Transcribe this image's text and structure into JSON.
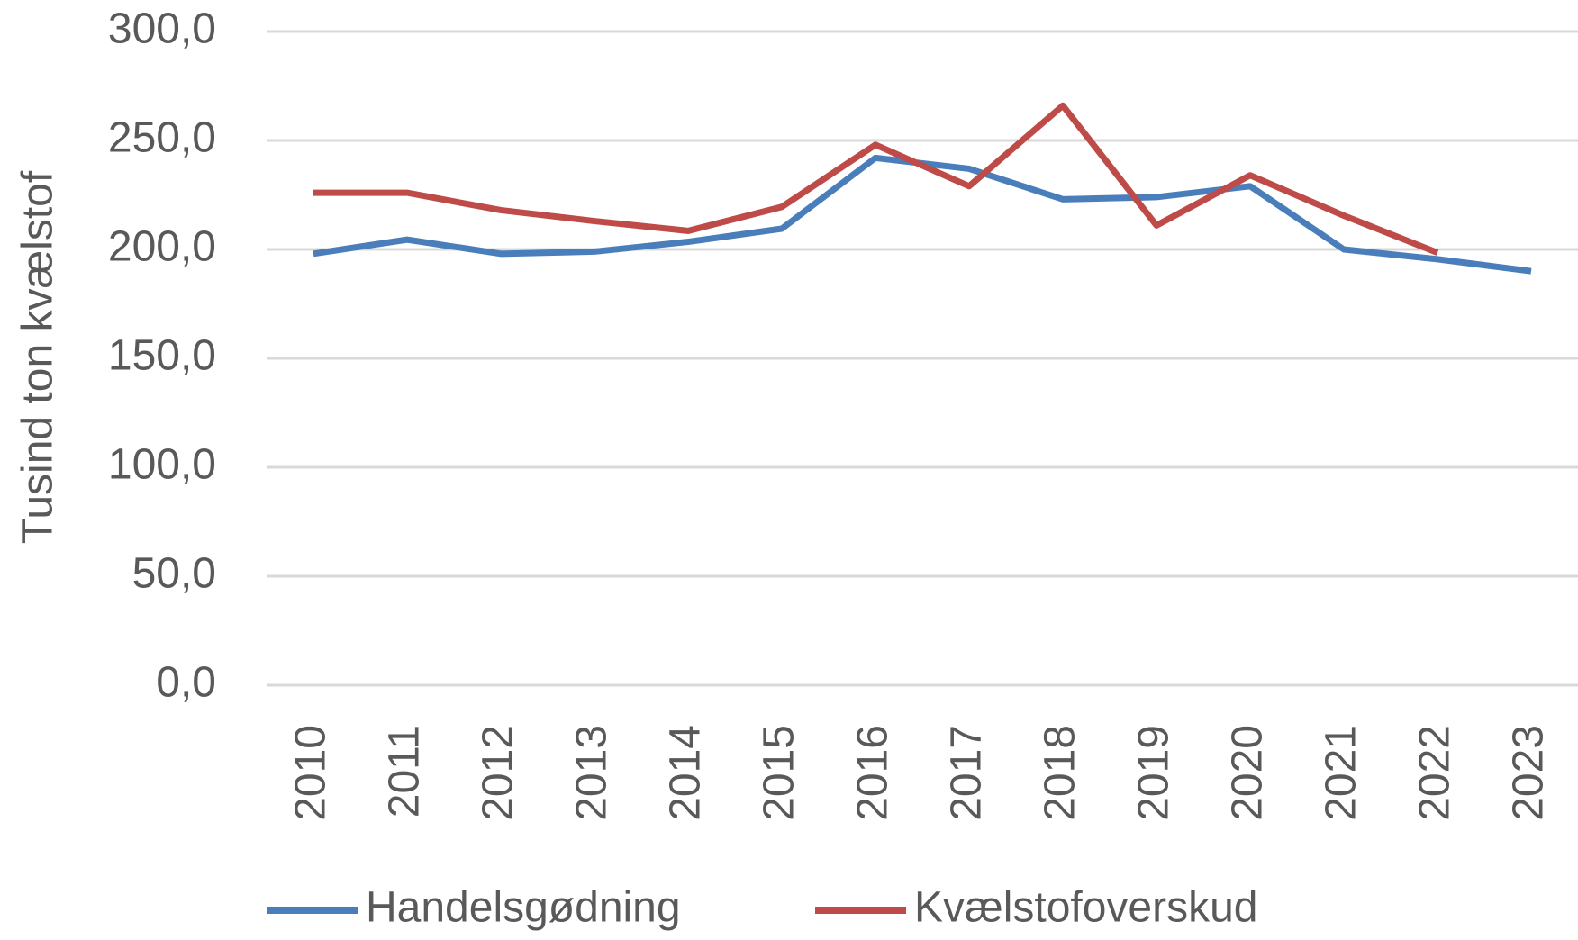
{
  "chart_data": {
    "type": "line",
    "y_label": "Tusind ton kvælstof",
    "categories": [
      "2010",
      "2011",
      "2012",
      "2013",
      "2014",
      "2015",
      "2016",
      "2017",
      "2018",
      "2019",
      "2020",
      "2021",
      "2022",
      "2023"
    ],
    "series": [
      {
        "name": "Handelsgødning",
        "color": "#4a7ebb",
        "values": [
          198,
          204.5,
          198,
          199,
          203.5,
          209.5,
          242,
          237,
          223,
          224,
          229,
          200,
          195.5,
          190
        ]
      },
      {
        "name": "Kvælstofoverskud",
        "color": "#be4b48",
        "values": [
          226,
          226,
          218,
          213,
          208.5,
          219.5,
          248,
          229,
          266,
          211,
          234,
          215.5,
          198.5,
          null
        ]
      }
    ],
    "ylim": [
      0,
      300
    ],
    "yticks": [
      {
        "value": 0,
        "label": "0,0"
      },
      {
        "value": 50,
        "label": "50,0"
      },
      {
        "value": 100,
        "label": "100,0"
      },
      {
        "value": 150,
        "label": "150,0"
      },
      {
        "value": 200,
        "label": "200,0"
      },
      {
        "value": 250,
        "label": "250,0"
      },
      {
        "value": 300,
        "label": "300,0"
      }
    ],
    "grid": true,
    "legend": "bottom"
  }
}
